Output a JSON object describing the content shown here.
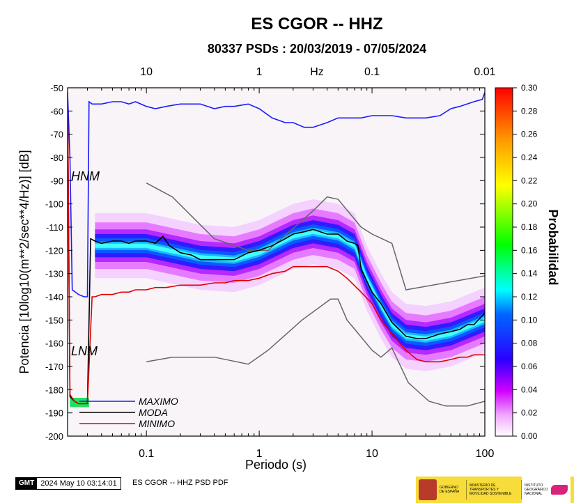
{
  "chart_data": {
    "type": "heatmap",
    "title": "ES CGOR -- HHZ",
    "subtitle": "80337 PSDs : 20/03/2019 - 07/05/2024",
    "xlabel": "Periodo (s)",
    "ylabel": "Potencia [10log10(m**2/sec**4/Hz)] [dB]",
    "x_scale": "log",
    "xlim": [
      0.02,
      100
    ],
    "ylim": [
      -200,
      -50
    ],
    "x_ticks": [
      {
        "v": 0.1,
        "label": "0.1"
      },
      {
        "v": 1,
        "label": "1"
      },
      {
        "v": 10,
        "label": "10"
      },
      {
        "v": 100,
        "label": "100"
      }
    ],
    "y_ticks": [
      -50,
      -60,
      -70,
      -80,
      -90,
      -100,
      -110,
      -120,
      -130,
      -140,
      -150,
      -160,
      -170,
      -180,
      -190,
      -200
    ],
    "top_axis": {
      "unit_label": "Hz",
      "ticks": [
        {
          "period": 0.1,
          "label": "10"
        },
        {
          "period": 1,
          "label": "1"
        },
        {
          "period": 10,
          "label": "0.1"
        },
        {
          "period": 100,
          "label": "0.01"
        }
      ]
    },
    "colorbar": {
      "label": "Probabilidad",
      "min": 0.0,
      "max": 0.3,
      "ticks": [
        "0.30",
        "0.28",
        "0.26",
        "0.24",
        "0.22",
        "0.20",
        "0.18",
        "0.16",
        "0.14",
        "0.12",
        "0.10",
        "0.08",
        "0.06",
        "0.04",
        "0.02",
        "0.00"
      ]
    },
    "series": [
      {
        "name": "MAXIMO",
        "color": "#1a1aff",
        "points": [
          [
            0.02,
            -52
          ],
          [
            0.021,
            -80
          ],
          [
            0.022,
            -137
          ],
          [
            0.025,
            -139
          ],
          [
            0.028,
            -140
          ],
          [
            0.03,
            -140
          ],
          [
            0.031,
            -56
          ],
          [
            0.033,
            -57
          ],
          [
            0.04,
            -57
          ],
          [
            0.05,
            -56
          ],
          [
            0.06,
            -56
          ],
          [
            0.07,
            -57
          ],
          [
            0.08,
            -56
          ],
          [
            0.1,
            -58
          ],
          [
            0.12,
            -59
          ],
          [
            0.15,
            -58
          ],
          [
            0.2,
            -57
          ],
          [
            0.3,
            -57
          ],
          [
            0.4,
            -59
          ],
          [
            0.5,
            -58
          ],
          [
            0.6,
            -58
          ],
          [
            0.8,
            -57
          ],
          [
            1,
            -59
          ],
          [
            1.3,
            -63
          ],
          [
            1.7,
            -65
          ],
          [
            2,
            -65
          ],
          [
            2.5,
            -67
          ],
          [
            3,
            -67
          ],
          [
            4,
            -65
          ],
          [
            5,
            -63
          ],
          [
            6,
            -63
          ],
          [
            8,
            -63
          ],
          [
            10,
            -62
          ],
          [
            15,
            -62
          ],
          [
            20,
            -63
          ],
          [
            30,
            -63
          ],
          [
            40,
            -62
          ],
          [
            50,
            -59
          ],
          [
            60,
            -58
          ],
          [
            80,
            -56
          ],
          [
            95,
            -55
          ],
          [
            100,
            -52
          ]
        ]
      },
      {
        "name": "MODA",
        "color": "#000000",
        "points": [
          [
            0.02,
            -52
          ],
          [
            0.021,
            -183
          ],
          [
            0.023,
            -185
          ],
          [
            0.025,
            -186
          ],
          [
            0.028,
            -186
          ],
          [
            0.03,
            -186
          ],
          [
            0.032,
            -115
          ],
          [
            0.035,
            -116
          ],
          [
            0.04,
            -117
          ],
          [
            0.05,
            -116
          ],
          [
            0.06,
            -116
          ],
          [
            0.07,
            -117
          ],
          [
            0.08,
            -116
          ],
          [
            0.1,
            -116
          ],
          [
            0.12,
            -117
          ],
          [
            0.14,
            -114
          ],
          [
            0.16,
            -118
          ],
          [
            0.2,
            -121
          ],
          [
            0.25,
            -122
          ],
          [
            0.3,
            -124
          ],
          [
            0.4,
            -124
          ],
          [
            0.5,
            -124
          ],
          [
            0.6,
            -124
          ],
          [
            0.8,
            -121
          ],
          [
            1,
            -120
          ],
          [
            1.3,
            -118
          ],
          [
            1.7,
            -115
          ],
          [
            2,
            -113
          ],
          [
            2.5,
            -112
          ],
          [
            3,
            -111
          ],
          [
            4,
            -113
          ],
          [
            5,
            -113
          ],
          [
            6,
            -116
          ],
          [
            7,
            -117
          ],
          [
            7.5,
            -118
          ],
          [
            8,
            -128
          ],
          [
            10,
            -138
          ],
          [
            12,
            -143
          ],
          [
            15,
            -151
          ],
          [
            20,
            -157
          ],
          [
            25,
            -158
          ],
          [
            30,
            -158
          ],
          [
            40,
            -156
          ],
          [
            50,
            -155
          ],
          [
            60,
            -154
          ],
          [
            70,
            -152
          ],
          [
            80,
            -152
          ],
          [
            100,
            -147
          ]
        ]
      },
      {
        "name": "MINIMO",
        "color": "#e00000",
        "points": [
          [
            0.02,
            -52
          ],
          [
            0.021,
            -182
          ],
          [
            0.023,
            -185
          ],
          [
            0.025,
            -186
          ],
          [
            0.028,
            -186
          ],
          [
            0.03,
            -186
          ],
          [
            0.033,
            -140
          ],
          [
            0.035,
            -140
          ],
          [
            0.04,
            -139
          ],
          [
            0.05,
            -139
          ],
          [
            0.06,
            -138
          ],
          [
            0.07,
            -138
          ],
          [
            0.08,
            -137
          ],
          [
            0.1,
            -137
          ],
          [
            0.12,
            -136
          ],
          [
            0.15,
            -136
          ],
          [
            0.2,
            -135
          ],
          [
            0.3,
            -135
          ],
          [
            0.4,
            -134
          ],
          [
            0.5,
            -134
          ],
          [
            0.6,
            -133
          ],
          [
            0.8,
            -133
          ],
          [
            1,
            -132
          ],
          [
            1.3,
            -130
          ],
          [
            1.7,
            -129
          ],
          [
            2,
            -127
          ],
          [
            2.5,
            -127
          ],
          [
            3,
            -127
          ],
          [
            4,
            -127
          ],
          [
            5,
            -129
          ],
          [
            6,
            -132
          ],
          [
            8,
            -138
          ],
          [
            10,
            -143
          ],
          [
            12,
            -150
          ],
          [
            15,
            -156
          ],
          [
            20,
            -163
          ],
          [
            25,
            -167
          ],
          [
            30,
            -168
          ],
          [
            40,
            -168
          ],
          [
            50,
            -167
          ],
          [
            60,
            -166
          ],
          [
            70,
            -166
          ],
          [
            80,
            -165
          ],
          [
            100,
            -165
          ]
        ]
      }
    ],
    "reference_curves": [
      {
        "name": "HNM",
        "color": "#666666",
        "points": [
          [
            0.1,
            -91
          ],
          [
            0.17,
            -97
          ],
          [
            0.4,
            -115
          ],
          [
            0.8,
            -120
          ],
          [
            1.2,
            -120
          ],
          [
            3,
            -103
          ],
          [
            4,
            -97
          ],
          [
            5,
            -98
          ],
          [
            8,
            -110
          ],
          [
            10,
            -113
          ],
          [
            15,
            -117
          ],
          [
            20,
            -137
          ],
          [
            100,
            -131
          ]
        ]
      },
      {
        "name": "LNM",
        "color": "#666666",
        "points": [
          [
            0.1,
            -168
          ],
          [
            0.17,
            -166
          ],
          [
            0.4,
            -166
          ],
          [
            0.8,
            -169
          ],
          [
            1.2,
            -163
          ],
          [
            2.4,
            -150
          ],
          [
            4.3,
            -141
          ],
          [
            5,
            -141
          ],
          [
            6,
            -150
          ],
          [
            10,
            -163
          ],
          [
            12,
            -166
          ],
          [
            15,
            -162
          ],
          [
            21,
            -177
          ],
          [
            32,
            -185
          ],
          [
            45,
            -187
          ],
          [
            70,
            -187
          ],
          [
            100,
            -185
          ]
        ]
      }
    ],
    "labels": {
      "hnm": "HNM",
      "lnm": "LNM"
    },
    "legend_position": "bottom-left",
    "heatmap_ridge": [
      [
        0.035,
        -118
      ],
      [
        0.1,
        -118
      ],
      [
        0.3,
        -123
      ],
      [
        0.6,
        -124
      ],
      [
        1,
        -121
      ],
      [
        2,
        -114
      ],
      [
        3,
        -112
      ],
      [
        5,
        -114
      ],
      [
        7,
        -118
      ],
      [
        9,
        -132
      ],
      [
        12,
        -144
      ],
      [
        15,
        -152
      ],
      [
        20,
        -157
      ],
      [
        30,
        -158
      ],
      [
        50,
        -156
      ],
      [
        100,
        -150
      ]
    ]
  },
  "footer": {
    "gmt_logo": "GMT",
    "timestamp": "2024 May 10 03:14:01",
    "caption": "ES CGOR -- HHZ PSD PDF"
  },
  "agency_logos": {
    "gobierno": "GOBIERNO DE ESPAÑA",
    "ministerio": "MINISTERIO DE TRANSPORTES Y MOVILIDAD SOSTENIBLE",
    "instituto": "INSTITUTO GEOGRÁFICO NACIONAL"
  }
}
